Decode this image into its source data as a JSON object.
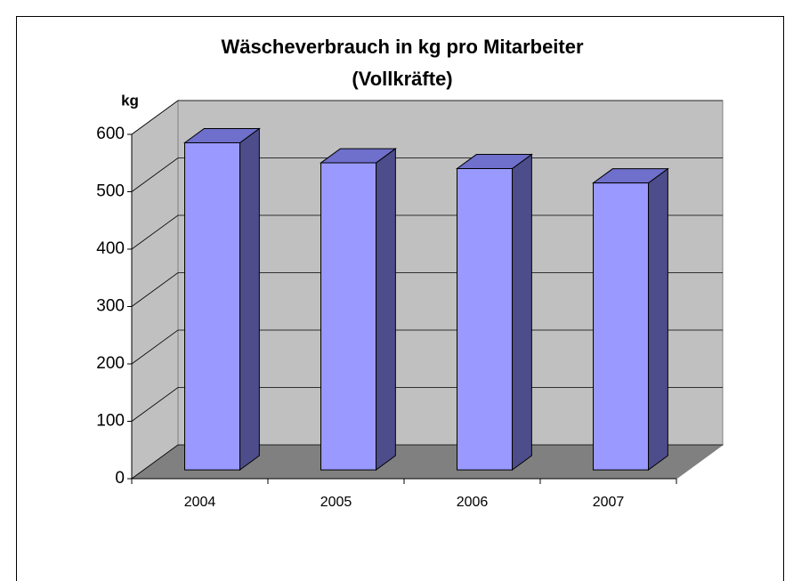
{
  "chart_data": {
    "type": "bar3d",
    "title_lines": [
      "Wäscheverbrauch in kg pro Mitarbeiter",
      "(Vollkräfte)"
    ],
    "y_axis_label": "kg",
    "categories": [
      "2004",
      "2005",
      "2006",
      "2007"
    ],
    "values": [
      570,
      535,
      525,
      500
    ],
    "color": "#9999ff",
    "ylim": [
      0,
      600
    ],
    "yticks": [
      0,
      100,
      200,
      300,
      400,
      500,
      600
    ],
    "grid": true
  }
}
